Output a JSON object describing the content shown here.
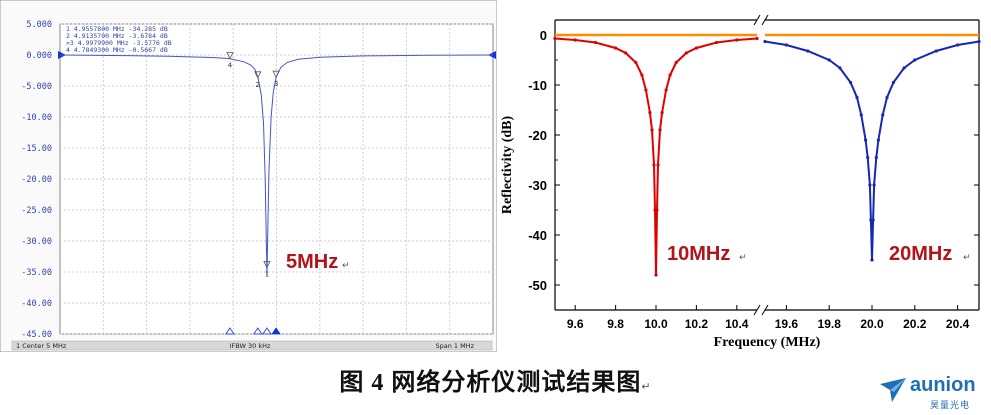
{
  "chart_data": [
    {
      "type": "line",
      "ytick_labels": [
        "5.000",
        "0.000",
        "-5.000",
        "-10.00",
        "-15.00",
        "-20.00",
        "-25.00",
        "-30.00",
        "-35.00",
        "-40.00",
        "-45.00"
      ],
      "ylim": [
        -45,
        5
      ],
      "grid": true,
      "markers_table": [
        {
          "id": "1",
          "text": "1  4.9557800 MHz -34.285 dB"
        },
        {
          "id": "2",
          "text": "2  4.9135700 MHz -3.6784 dB"
        },
        {
          "id": "3",
          "text": ">3  4.9979900 MHz -3.5776 dB"
        },
        {
          "id": "4",
          "text": "4  4.7849300 MHz -0.5667 dB"
        }
      ],
      "marker_points": [
        {
          "label": "1",
          "x": 4.95578,
          "y": -34.285
        },
        {
          "label": "2",
          "x": 4.91357,
          "y": -3.6784
        },
        {
          "label": "3",
          "x": 4.99799,
          "y": -3.5776
        },
        {
          "label": "4",
          "x": 4.78493,
          "y": -0.5667
        }
      ],
      "series": [
        {
          "color": "#4455cc",
          "x": [
            4.0,
            4.3,
            4.5,
            4.7,
            4.78,
            4.85,
            4.88,
            4.9,
            4.915,
            4.93,
            4.94,
            4.948,
            4.953,
            4.956,
            4.959,
            4.965,
            4.975,
            4.985,
            4.998,
            5.02,
            5.05,
            5.1,
            5.2,
            5.4,
            5.7,
            6.0
          ],
          "y": [
            0,
            -0.1,
            -0.2,
            -0.4,
            -0.57,
            -1.1,
            -1.6,
            -2.3,
            -3.7,
            -6.5,
            -11,
            -20,
            -30,
            -35.5,
            -30,
            -19,
            -10,
            -6,
            -3.6,
            -2.0,
            -1.2,
            -0.7,
            -0.35,
            -0.15,
            -0.05,
            0
          ]
        }
      ],
      "annotation": "5MHz",
      "status_bar": {
        "left": "1  Center 5 MHz",
        "center": "IFBW 30 kHz",
        "right": "Span 1 MHz"
      },
      "return_mark": "↵"
    },
    {
      "type": "line",
      "xlabel": "Frequency (MHz)",
      "ylabel": "Reflectivity (dB)",
      "ylim": [
        -55,
        3
      ],
      "ytick_labels": [
        "0",
        "-10",
        "-20",
        "-30",
        "-40",
        "-50"
      ],
      "xtick_labels_left": [
        "9.6",
        "9.8",
        "10.0",
        "10.2",
        "10.4"
      ],
      "xtick_labels_right": [
        "19.6",
        "19.8",
        "20.0",
        "20.2",
        "20.4"
      ],
      "axis_break": true,
      "reference_line": {
        "y": 0,
        "color": "#ff8c00"
      },
      "series": [
        {
          "color": "#e00000",
          "segment": "left",
          "x": [
            9.5,
            9.6,
            9.7,
            9.8,
            9.85,
            9.9,
            9.93,
            9.95,
            9.97,
            9.98,
            9.99,
            9.995,
            10.0,
            10.005,
            10.01,
            10.02,
            10.03,
            10.05,
            10.07,
            10.1,
            10.15,
            10.2,
            10.3,
            10.4,
            10.5
          ],
          "y": [
            -0.7,
            -1.0,
            -1.5,
            -2.6,
            -3.6,
            -5.5,
            -8,
            -11,
            -15.5,
            -19,
            -26,
            -35,
            -48,
            -35,
            -26,
            -19,
            -15.5,
            -11,
            -8,
            -5.5,
            -3.6,
            -2.6,
            -1.5,
            -1.0,
            -0.7
          ]
        },
        {
          "color": "#1428b4",
          "segment": "right",
          "x": [
            19.5,
            19.6,
            19.7,
            19.8,
            19.85,
            19.9,
            19.93,
            19.95,
            19.97,
            19.98,
            19.99,
            19.995,
            20.0,
            20.005,
            20.01,
            20.02,
            20.03,
            20.05,
            20.07,
            20.1,
            20.15,
            20.2,
            20.3,
            20.4,
            20.5
          ],
          "y": [
            -1.3,
            -2.0,
            -3.2,
            -5.0,
            -6.6,
            -9.5,
            -12.5,
            -16,
            -21,
            -24.5,
            -30,
            -37,
            -45,
            -37,
            -30,
            -24.5,
            -21,
            -16,
            -12.5,
            -9.5,
            -6.6,
            -5.0,
            -3.2,
            -2.0,
            -1.3
          ]
        }
      ],
      "annotations": [
        "10MHz",
        "20MHz"
      ],
      "return_mark": "↵"
    }
  ],
  "caption": {
    "text": "图 4 网络分析仪测试结果图",
    "return_mark": "↵"
  },
  "logo": {
    "name": "aunion",
    "sub": "昊量光电",
    "icon": "arrow-logo-icon"
  }
}
